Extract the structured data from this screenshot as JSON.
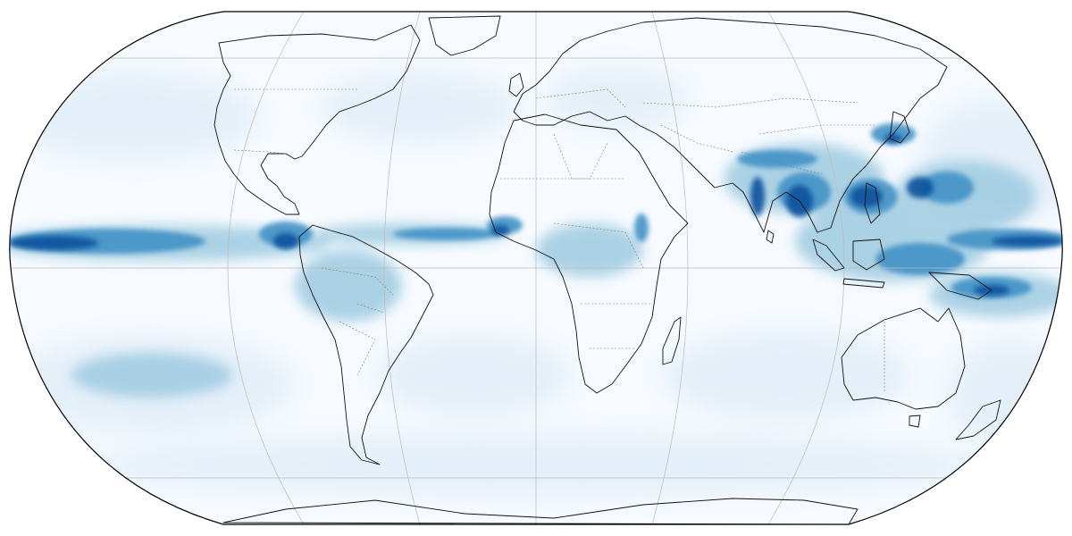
{
  "map": {
    "projection": "robinson",
    "variable": "precipitation",
    "colormap": "Blues",
    "colors": {
      "ocean_low": "#f7fbff",
      "light": "#deebf7",
      "mid": "#9ecae1",
      "high": "#4292c6",
      "very_high": "#08519c",
      "extreme": "#08306b",
      "coastline": "#111111",
      "borders": "#777777",
      "graticule": "#bbbbbb",
      "frame": "#000000"
    },
    "graticule": true,
    "coastlines": true,
    "country_borders": true
  }
}
